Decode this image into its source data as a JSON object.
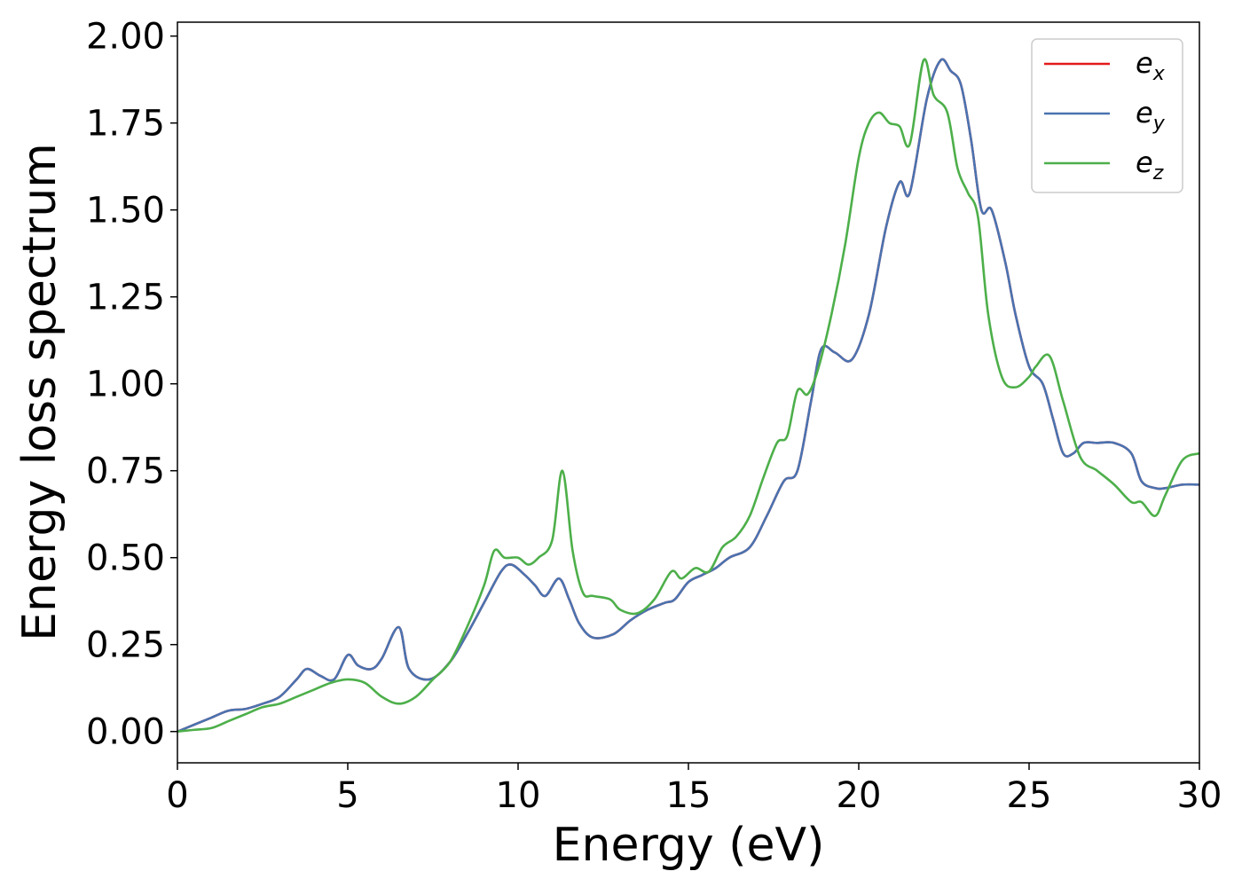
{
  "chart_data": {
    "type": "line",
    "xlabel": "Energy (eV)",
    "ylabel": "Energy loss spectrum",
    "xlim": [
      0,
      30
    ],
    "ylim": [
      -0.09,
      2.04
    ],
    "xticks": [
      0,
      5,
      10,
      15,
      20,
      25,
      30
    ],
    "xtick_labels": [
      "0",
      "5",
      "10",
      "15",
      "20",
      "25",
      "30"
    ],
    "yticks": [
      0,
      0.25,
      0.5,
      0.75,
      1.0,
      1.25,
      1.5,
      1.75,
      2.0
    ],
    "ytick_labels": [
      "0.00",
      "0.25",
      "0.50",
      "0.75",
      "1.00",
      "1.25",
      "1.50",
      "1.75",
      "2.00"
    ],
    "grid": false,
    "legend_position": "top-right",
    "series": [
      {
        "name": "e",
        "sub": "x",
        "color": "#e41a1c",
        "x": [
          0,
          0.5,
          1,
          1.5,
          2,
          2.5,
          3,
          3.5,
          3.8,
          4.2,
          4.6,
          5,
          5.3,
          5.7,
          6,
          6.5,
          6.8,
          7.4,
          8,
          8.5,
          9,
          9.5,
          9.8,
          10.2,
          10.5,
          10.8,
          11.2,
          11.5,
          11.8,
          12.2,
          12.8,
          13.3,
          13.8,
          14.3,
          14.6,
          15,
          15.4,
          15.8,
          16.2,
          16.8,
          17.3,
          17.8,
          18.2,
          18.6,
          18.9,
          19.3,
          19.8,
          20.3,
          20.8,
          21.2,
          21.5,
          22,
          22.4,
          22.7,
          23,
          23.3,
          23.6,
          23.9,
          24.3,
          24.6,
          25,
          25.4,
          25.7,
          26,
          26.3,
          26.6,
          27,
          27.5,
          28,
          28.3,
          28.7,
          29,
          29.5,
          30
        ],
        "values": [
          0,
          0.02,
          0.04,
          0.06,
          0.065,
          0.08,
          0.1,
          0.15,
          0.18,
          0.16,
          0.15,
          0.22,
          0.19,
          0.18,
          0.21,
          0.3,
          0.18,
          0.15,
          0.2,
          0.28,
          0.37,
          0.46,
          0.48,
          0.45,
          0.42,
          0.39,
          0.44,
          0.38,
          0.31,
          0.27,
          0.28,
          0.32,
          0.35,
          0.37,
          0.38,
          0.43,
          0.45,
          0.47,
          0.5,
          0.53,
          0.62,
          0.72,
          0.75,
          0.95,
          1.1,
          1.09,
          1.07,
          1.2,
          1.45,
          1.58,
          1.55,
          1.82,
          1.93,
          1.9,
          1.86,
          1.7,
          1.5,
          1.5,
          1.35,
          1.2,
          1.05,
          1.0,
          0.9,
          0.8,
          0.8,
          0.83,
          0.83,
          0.83,
          0.8,
          0.72,
          0.7,
          0.7,
          0.71,
          0.71
        ]
      },
      {
        "name": "e",
        "sub": "y",
        "color": "#4a73b0",
        "x": [
          0,
          0.5,
          1,
          1.5,
          2,
          2.5,
          3,
          3.5,
          3.8,
          4.2,
          4.6,
          5,
          5.3,
          5.7,
          6,
          6.5,
          6.8,
          7.4,
          8,
          8.5,
          9,
          9.5,
          9.8,
          10.2,
          10.5,
          10.8,
          11.2,
          11.5,
          11.8,
          12.2,
          12.8,
          13.3,
          13.8,
          14.3,
          14.6,
          15,
          15.4,
          15.8,
          16.2,
          16.8,
          17.3,
          17.8,
          18.2,
          18.6,
          18.9,
          19.3,
          19.8,
          20.3,
          20.8,
          21.2,
          21.5,
          22,
          22.4,
          22.7,
          23,
          23.3,
          23.6,
          23.9,
          24.3,
          24.6,
          25,
          25.4,
          25.7,
          26,
          26.3,
          26.6,
          27,
          27.5,
          28,
          28.3,
          28.7,
          29,
          29.5,
          30
        ],
        "values": [
          0,
          0.02,
          0.04,
          0.06,
          0.065,
          0.08,
          0.1,
          0.15,
          0.18,
          0.16,
          0.15,
          0.22,
          0.19,
          0.18,
          0.21,
          0.3,
          0.18,
          0.15,
          0.2,
          0.28,
          0.37,
          0.46,
          0.48,
          0.45,
          0.42,
          0.39,
          0.44,
          0.38,
          0.31,
          0.27,
          0.28,
          0.32,
          0.35,
          0.37,
          0.38,
          0.43,
          0.45,
          0.47,
          0.5,
          0.53,
          0.62,
          0.72,
          0.75,
          0.95,
          1.1,
          1.09,
          1.07,
          1.2,
          1.45,
          1.58,
          1.55,
          1.82,
          1.93,
          1.9,
          1.86,
          1.7,
          1.5,
          1.5,
          1.35,
          1.2,
          1.05,
          1.0,
          0.9,
          0.8,
          0.8,
          0.83,
          0.83,
          0.83,
          0.8,
          0.72,
          0.7,
          0.7,
          0.71,
          0.71
        ]
      },
      {
        "name": "e",
        "sub": "z",
        "color": "#4daf4a",
        "x": [
          0,
          0.5,
          1,
          1.5,
          2,
          2.5,
          3,
          3.5,
          4,
          4.5,
          5,
          5.5,
          6,
          6.5,
          7,
          7.5,
          8,
          8.5,
          9,
          9.3,
          9.6,
          10,
          10.3,
          10.6,
          11,
          11.3,
          11.6,
          11.9,
          12.2,
          12.7,
          13,
          13.5,
          14,
          14.5,
          14.8,
          15.2,
          15.6,
          16,
          16.4,
          16.8,
          17.2,
          17.6,
          17.9,
          18.2,
          18.5,
          18.8,
          19.2,
          19.6,
          20,
          20.3,
          20.6,
          20.9,
          21.2,
          21.5,
          21.9,
          22.2,
          22.6,
          22.9,
          23.2,
          23.5,
          23.8,
          24.2,
          24.6,
          25,
          25.2,
          25.6,
          26,
          26.5,
          27,
          27.5,
          28,
          28.3,
          28.7,
          29,
          29.5,
          30
        ],
        "values": [
          0,
          0.005,
          0.01,
          0.03,
          0.05,
          0.07,
          0.08,
          0.1,
          0.12,
          0.14,
          0.15,
          0.14,
          0.1,
          0.08,
          0.1,
          0.15,
          0.2,
          0.3,
          0.42,
          0.52,
          0.5,
          0.5,
          0.48,
          0.5,
          0.55,
          0.75,
          0.52,
          0.4,
          0.39,
          0.38,
          0.35,
          0.34,
          0.38,
          0.46,
          0.44,
          0.47,
          0.46,
          0.53,
          0.56,
          0.62,
          0.73,
          0.83,
          0.85,
          0.98,
          0.97,
          1.04,
          1.2,
          1.4,
          1.65,
          1.75,
          1.78,
          1.75,
          1.74,
          1.69,
          1.93,
          1.83,
          1.78,
          1.62,
          1.55,
          1.48,
          1.2,
          1.02,
          0.99,
          1.02,
          1.05,
          1.08,
          0.95,
          0.79,
          0.75,
          0.71,
          0.66,
          0.66,
          0.62,
          0.68,
          0.78,
          0.8
        ]
      }
    ]
  }
}
